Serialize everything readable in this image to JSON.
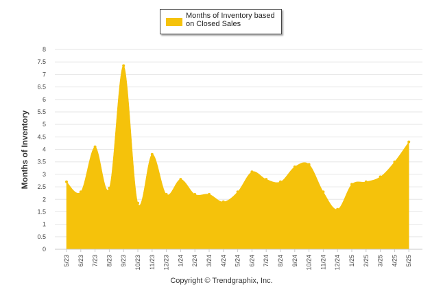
{
  "chart_data": {
    "type": "area",
    "title": "",
    "legend": {
      "label": "Months of Inventory based on Closed Sales",
      "position": "top-center"
    },
    "ylabel": "Months of Inventory",
    "xlabel": "",
    "ylim": [
      0,
      8
    ],
    "yticks": [
      "0",
      "0.5",
      "1",
      "1.5",
      "2",
      "2.5",
      "3",
      "3.5",
      "4",
      "4.5",
      "5",
      "5.5",
      "6",
      "6.5",
      "7",
      "7.5",
      "8"
    ],
    "categories": [
      "5/23",
      "6/23",
      "7/23",
      "8/23",
      "9/23",
      "10/23",
      "11/23",
      "12/23",
      "1/24",
      "2/24",
      "3/24",
      "4/24",
      "5/24",
      "6/24",
      "7/24",
      "8/24",
      "9/24",
      "10/24",
      "11/24",
      "12/24",
      "1/25",
      "2/25",
      "3/25",
      "4/25",
      "5/25"
    ],
    "series": [
      {
        "name": "Months of Inventory based on Closed Sales",
        "color": "#f5c20b",
        "values": [
          2.7,
          2.3,
          4.1,
          2.45,
          7.35,
          1.85,
          3.8,
          2.2,
          2.8,
          2.2,
          2.2,
          1.9,
          2.3,
          3.1,
          2.8,
          2.7,
          3.3,
          3.4,
          2.3,
          1.6,
          2.6,
          2.7,
          2.9,
          3.5,
          4.3
        ]
      }
    ],
    "grid": true
  },
  "footer": "Copyright © Trendgraphix, Inc."
}
